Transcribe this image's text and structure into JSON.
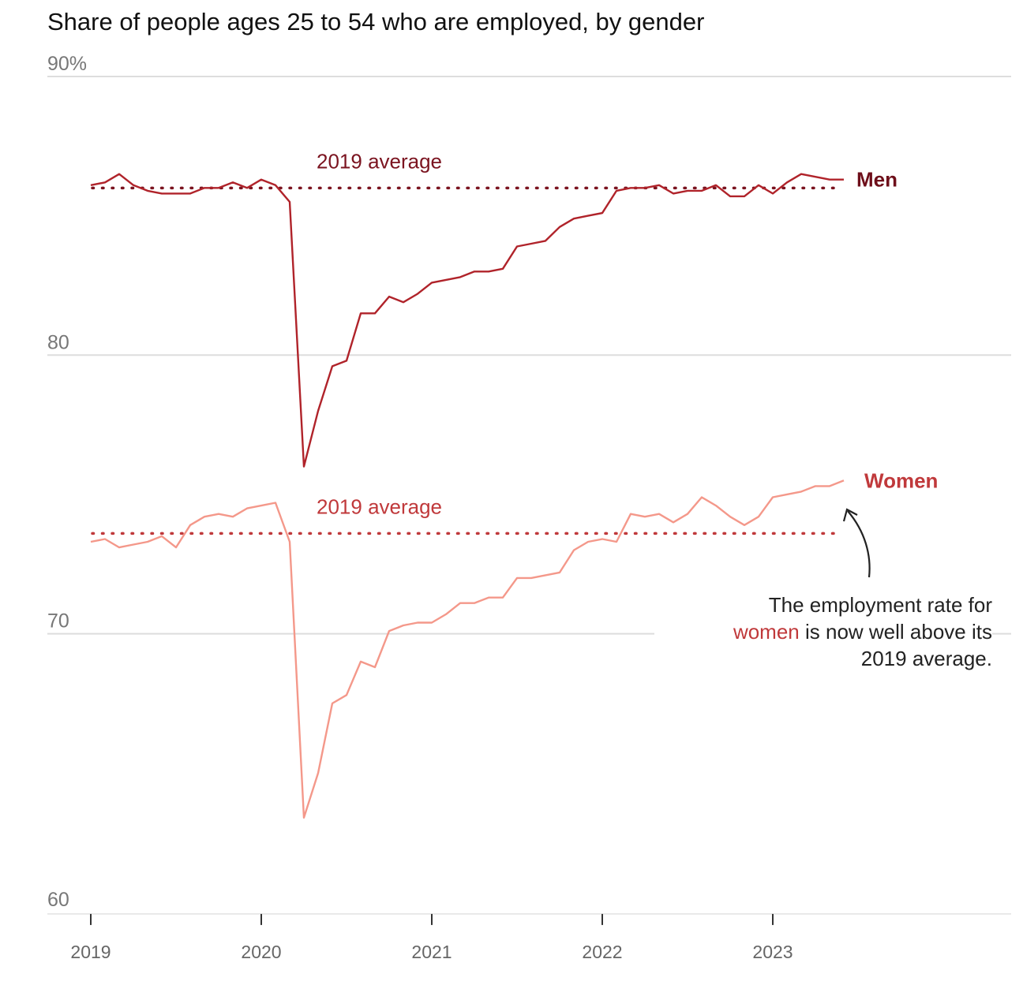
{
  "chart_data": {
    "type": "line",
    "title": "Share of people ages 25 to 54 who are employed, by gender",
    "ylim": [
      60,
      90
    ],
    "y_ticks": [
      {
        "value": 90,
        "label": "90%"
      },
      {
        "value": 80,
        "label": "80"
      },
      {
        "value": 70,
        "label": "70"
      },
      {
        "value": 60,
        "label": "60"
      }
    ],
    "x_ticks": [
      {
        "value": "2019-01",
        "label": "2019"
      },
      {
        "value": "2020-01",
        "label": "2020"
      },
      {
        "value": "2021-01",
        "label": "2021"
      },
      {
        "value": "2022-01",
        "label": "2022"
      },
      {
        "value": "2023-01",
        "label": "2023"
      }
    ],
    "grid": true,
    "series": [
      {
        "name": "Men",
        "color": "#b0232a",
        "label_color": "#6e0f1a",
        "x": [
          "2019-01",
          "2019-02",
          "2019-03",
          "2019-04",
          "2019-05",
          "2019-06",
          "2019-07",
          "2019-08",
          "2019-09",
          "2019-10",
          "2019-11",
          "2019-12",
          "2020-01",
          "2020-02",
          "2020-03",
          "2020-04",
          "2020-05",
          "2020-06",
          "2020-07",
          "2020-08",
          "2020-09",
          "2020-10",
          "2020-11",
          "2020-12",
          "2021-01",
          "2021-02",
          "2021-03",
          "2021-04",
          "2021-05",
          "2021-06",
          "2021-07",
          "2021-08",
          "2021-09",
          "2021-10",
          "2021-11",
          "2021-12",
          "2022-01",
          "2022-02",
          "2022-03",
          "2022-04",
          "2022-05",
          "2022-06",
          "2022-07",
          "2022-08",
          "2022-09",
          "2022-10",
          "2022-11",
          "2022-12",
          "2023-01",
          "2023-02",
          "2023-03",
          "2023-04",
          "2023-05",
          "2023-06"
        ],
        "values": [
          86.1,
          86.2,
          86.5,
          86.1,
          85.9,
          85.8,
          85.8,
          85.8,
          86.0,
          86.0,
          86.2,
          86.0,
          86.3,
          86.1,
          85.5,
          76.0,
          78.0,
          79.6,
          79.8,
          81.5,
          81.5,
          82.1,
          81.9,
          82.2,
          82.6,
          82.7,
          82.8,
          83.0,
          83.0,
          83.1,
          83.9,
          84.0,
          84.1,
          84.6,
          84.9,
          85.0,
          85.1,
          85.9,
          86.0,
          86.0,
          86.1,
          85.8,
          85.9,
          85.9,
          86.1,
          85.7,
          85.7,
          86.1,
          85.8,
          86.2,
          86.5,
          86.4,
          86.3,
          86.3
        ]
      },
      {
        "name": "Women",
        "color": "#f4988a",
        "label_color": "#c0393b",
        "x": [
          "2019-01",
          "2019-02",
          "2019-03",
          "2019-04",
          "2019-05",
          "2019-06",
          "2019-07",
          "2019-08",
          "2019-09",
          "2019-10",
          "2019-11",
          "2019-12",
          "2020-01",
          "2020-02",
          "2020-03",
          "2020-04",
          "2020-05",
          "2020-06",
          "2020-07",
          "2020-08",
          "2020-09",
          "2020-10",
          "2020-11",
          "2020-12",
          "2021-01",
          "2021-02",
          "2021-03",
          "2021-04",
          "2021-05",
          "2021-06",
          "2021-07",
          "2021-08",
          "2021-09",
          "2021-10",
          "2021-11",
          "2021-12",
          "2022-01",
          "2022-02",
          "2022-03",
          "2022-04",
          "2022-05",
          "2022-06",
          "2022-07",
          "2022-08",
          "2022-09",
          "2022-10",
          "2022-11",
          "2022-12",
          "2023-01",
          "2023-02",
          "2023-03",
          "2023-04",
          "2023-05",
          "2023-06"
        ],
        "values": [
          73.3,
          73.4,
          73.1,
          73.2,
          73.3,
          73.5,
          73.1,
          73.9,
          74.2,
          74.3,
          74.2,
          74.5,
          74.6,
          74.7,
          73.3,
          63.4,
          65.0,
          67.5,
          67.8,
          69.0,
          68.8,
          70.1,
          70.3,
          70.4,
          70.4,
          70.7,
          71.1,
          71.1,
          71.3,
          71.3,
          72.0,
          72.0,
          72.1,
          72.2,
          73.0,
          73.3,
          73.4,
          73.3,
          74.3,
          74.2,
          74.3,
          74.0,
          74.3,
          74.9,
          74.6,
          74.2,
          73.9,
          74.2,
          74.9,
          75.0,
          75.1,
          75.3,
          75.3,
          75.5
        ]
      }
    ],
    "reference_lines": [
      {
        "series": "Men",
        "value": 86.0,
        "label": "2019 average",
        "style": "dotted",
        "color": "#7b1420"
      },
      {
        "series": "Women",
        "value": 73.6,
        "label": "2019 average",
        "style": "dotted",
        "color": "#c0393b"
      }
    ],
    "annotation": {
      "line1": "The employment rate for",
      "highlight": "women",
      "line2_rest": " is now well above its",
      "line3": "2019 average."
    }
  }
}
